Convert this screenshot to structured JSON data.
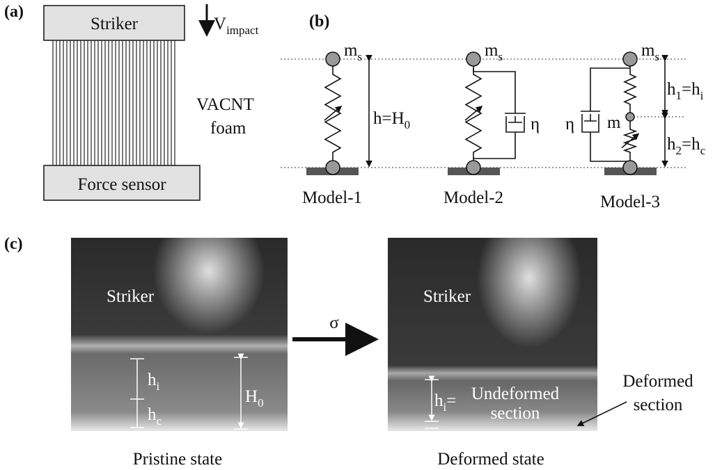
{
  "a": {
    "label": "(a)",
    "striker": "Striker",
    "velocity": [
      "V",
      "impact"
    ],
    "material": [
      "VACNT",
      "foam"
    ],
    "sensor": "Force sensor"
  },
  "b": {
    "label": "(b)",
    "models": [
      {
        "name": "Model-1",
        "mass": [
          "m",
          "s"
        ],
        "height": [
          "h=H",
          "0"
        ]
      },
      {
        "name": "Model-2",
        "mass": [
          "m",
          "s"
        ],
        "damper": "η"
      },
      {
        "name": "Model-3",
        "mass": [
          "m",
          "s"
        ],
        "damper": "η",
        "middle_mass": "m",
        "upper": [
          "h",
          "1",
          "=h",
          "i"
        ],
        "lower": [
          "h",
          "2",
          "=h",
          "c"
        ]
      }
    ]
  },
  "c": {
    "label": "(c)",
    "arrow": "σ",
    "pristine": {
      "striker": "Striker",
      "upper": [
        "h",
        "i"
      ],
      "lower": [
        "h",
        "c"
      ],
      "height": [
        "H",
        "0"
      ],
      "caption": "Pristine state"
    },
    "deformed": {
      "striker": "Striker",
      "upper": [
        "h",
        "i",
        "="
      ],
      "undeformed": [
        "Undeformed",
        "section"
      ],
      "deformed": [
        "Deformed",
        "section"
      ],
      "caption": "Deformed state"
    }
  }
}
